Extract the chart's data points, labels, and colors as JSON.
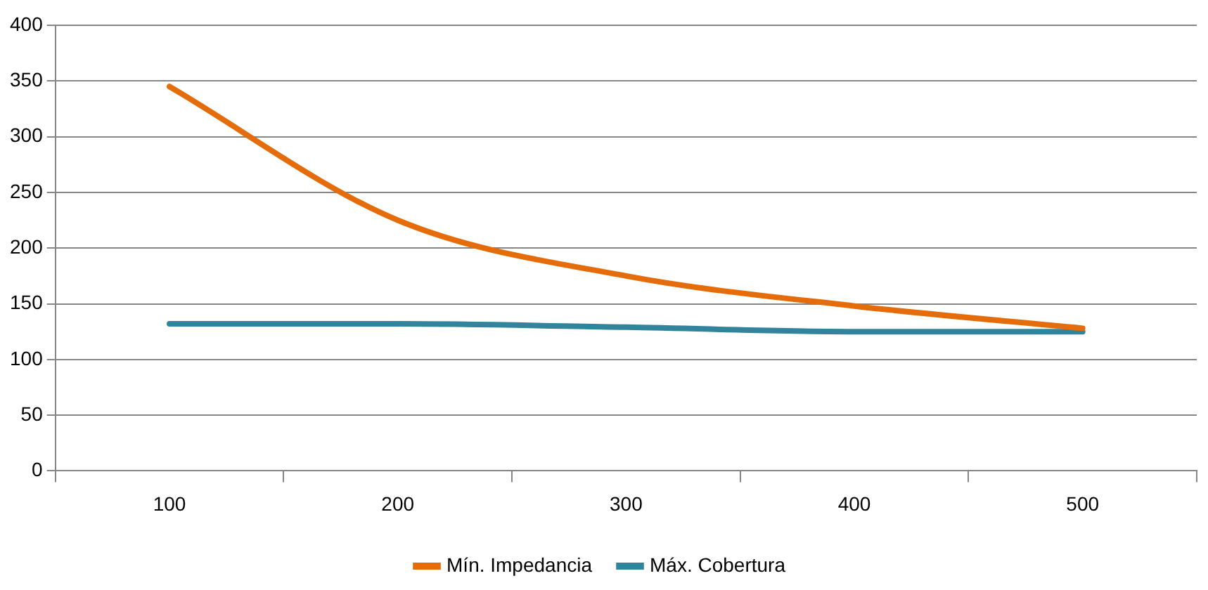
{
  "chart_data": {
    "type": "line",
    "categories": [
      "100",
      "200",
      "300",
      "400",
      "500"
    ],
    "series": [
      {
        "name": "Mín. Impedancia",
        "color": "#e46c0a",
        "values": [
          345,
          225,
          175,
          148,
          128
        ]
      },
      {
        "name": "Máx. Cobertura",
        "color": "#31849b",
        "values": [
          132,
          132,
          129,
          125,
          125
        ]
      }
    ],
    "ylim": [
      0,
      400
    ],
    "yticks": [
      0,
      50,
      100,
      150,
      200,
      250,
      300,
      350,
      400
    ],
    "grid": "y",
    "legend": "bottom",
    "marker": "none",
    "line_style": "solid"
  }
}
